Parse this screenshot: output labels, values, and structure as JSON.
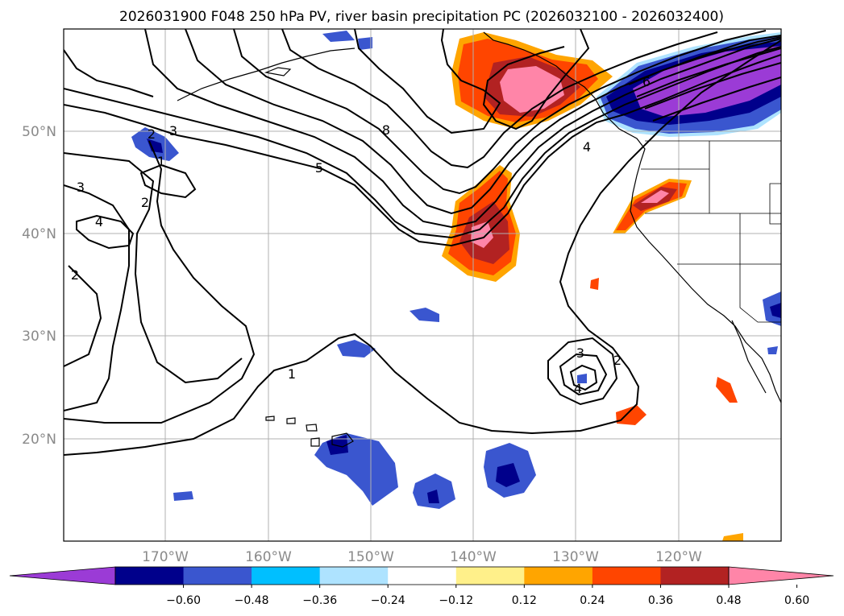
{
  "title": "2026031900 F048 250 hPa PV, river basin precipitation PC (2026032100 - 2026032400)",
  "map": {
    "lat_labels": [
      "50°N",
      "40°N",
      "30°N",
      "20°N"
    ],
    "lon_labels": [
      "170°W",
      "160°W",
      "150°W",
      "140°W",
      "130°W",
      "120°W"
    ],
    "pv_contour_labels": [
      "1",
      "2",
      "3",
      "4",
      "5",
      "6",
      "8"
    ]
  },
  "colorbar": {
    "colors": [
      "#9b3bd6",
      "#00008b",
      "#3a56cf",
      "#00bfff",
      "#aee3ff",
      "#ffffff",
      "#fff08a",
      "#ffa500",
      "#ff4500",
      "#b22222",
      "#ff85a8"
    ],
    "tick_labels": [
      "−0.60",
      "−0.48",
      "−0.36",
      "−0.24",
      "−0.12",
      "0.12",
      "0.24",
      "0.36",
      "0.48",
      "0.60"
    ]
  }
}
